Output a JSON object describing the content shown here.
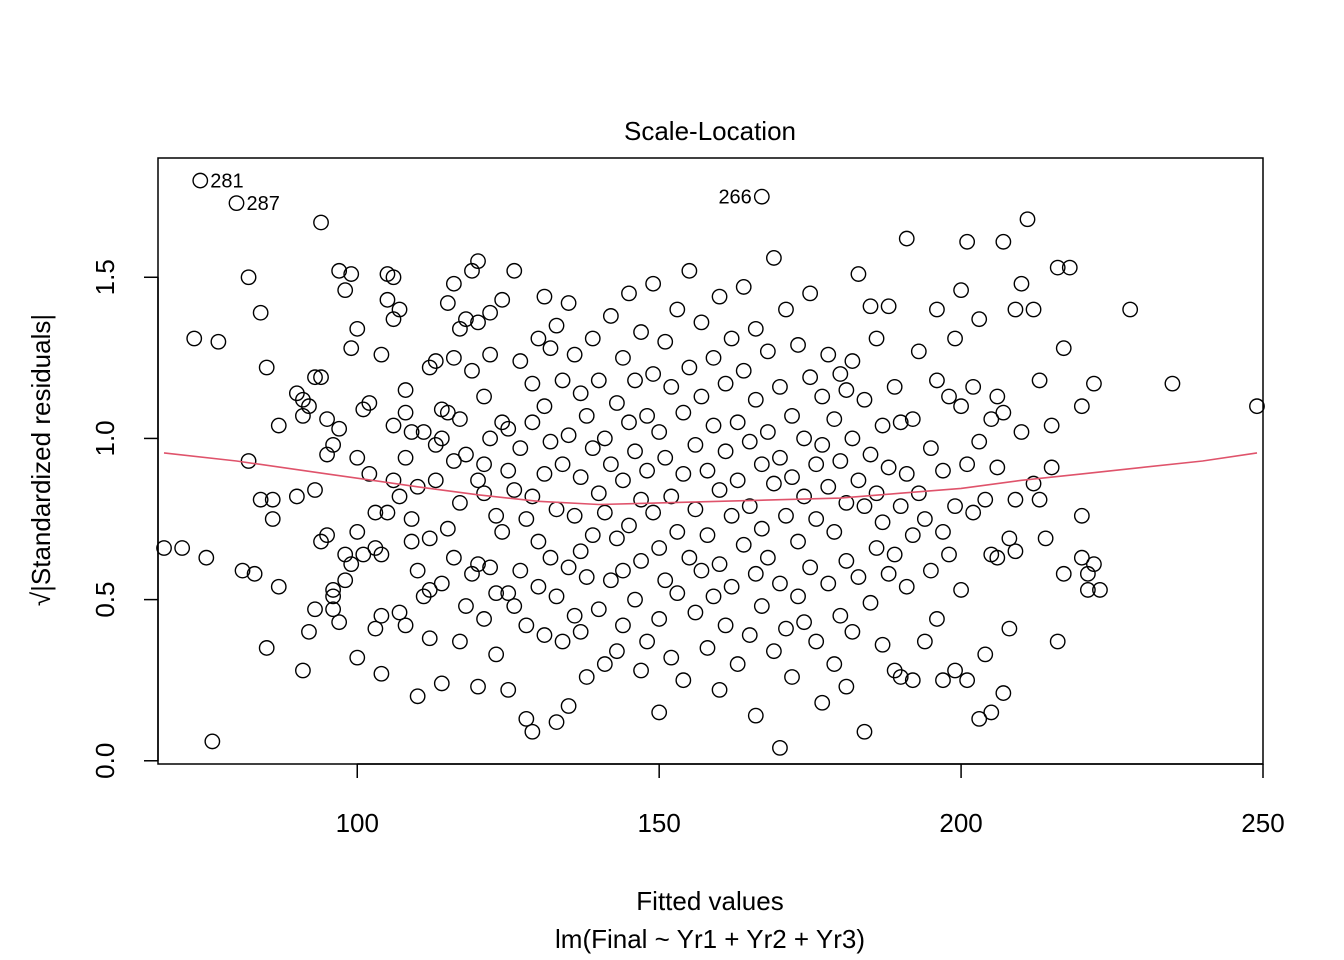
{
  "chart_data": {
    "type": "scatter",
    "title": "Scale-Location",
    "xlabel": "Fitted values",
    "subtitle": "lm(Final ~ Yr1 + Yr2 + Yr3)",
    "ylabel": "√|Standardized residuals|",
    "xlim": [
      67,
      250
    ],
    "ylim": [
      -0.01,
      1.87
    ],
    "xticks": [
      100,
      150,
      200,
      250
    ],
    "yticks": [
      0.0,
      0.5,
      1.0,
      1.5
    ],
    "xtick_labels": [
      "100",
      "150",
      "200",
      "250"
    ],
    "ytick_labels": [
      "0.0",
      "0.5",
      "1.0",
      "1.5"
    ],
    "grid": false,
    "smooth_color": "#DF536B",
    "point_color": "#000000",
    "smooth": [
      [
        68,
        0.955
      ],
      [
        80,
        0.93
      ],
      [
        95,
        0.89
      ],
      [
        110,
        0.85
      ],
      [
        120,
        0.825
      ],
      [
        130,
        0.805
      ],
      [
        140,
        0.795
      ],
      [
        150,
        0.8
      ],
      [
        160,
        0.805
      ],
      [
        170,
        0.81
      ],
      [
        180,
        0.815
      ],
      [
        190,
        0.83
      ],
      [
        200,
        0.845
      ],
      [
        210,
        0.87
      ],
      [
        220,
        0.89
      ],
      [
        230,
        0.91
      ],
      [
        240,
        0.93
      ],
      [
        249,
        0.955
      ]
    ],
    "labeled_points": [
      {
        "label": "281",
        "x": 74,
        "y": 1.8,
        "side": "right"
      },
      {
        "label": "287",
        "x": 80,
        "y": 1.73,
        "side": "right"
      },
      {
        "label": "266",
        "x": 167,
        "y": 1.75,
        "side": "left"
      }
    ],
    "points": [
      [
        68,
        0.66
      ],
      [
        71,
        0.66
      ],
      [
        73,
        1.31
      ],
      [
        75,
        0.63
      ],
      [
        76,
        0.06
      ],
      [
        77,
        1.3
      ],
      [
        81,
        0.59
      ],
      [
        82,
        1.5
      ],
      [
        82,
        0.93
      ],
      [
        83,
        0.58
      ],
      [
        84,
        1.39
      ],
      [
        84,
        0.81
      ],
      [
        85,
        0.35
      ],
      [
        85,
        1.22
      ],
      [
        86,
        0.75
      ],
      [
        86,
        0.81
      ],
      [
        87,
        1.04
      ],
      [
        87,
        0.54
      ],
      [
        90,
        1.14
      ],
      [
        90,
        0.82
      ],
      [
        91,
        1.12
      ],
      [
        91,
        0.28
      ],
      [
        91,
        1.07
      ],
      [
        92,
        1.1
      ],
      [
        92,
        0.4
      ],
      [
        93,
        1.19
      ],
      [
        93,
        0.47
      ],
      [
        93,
        0.84
      ],
      [
        94,
        1.67
      ],
      [
        94,
        1.19
      ],
      [
        94,
        0.68
      ],
      [
        95,
        0.95
      ],
      [
        95,
        0.7
      ],
      [
        95,
        1.06
      ],
      [
        96,
        0.47
      ],
      [
        96,
        0.53
      ],
      [
        96,
        0.51
      ],
      [
        96,
        0.98
      ],
      [
        97,
        1.52
      ],
      [
        97,
        1.03
      ],
      [
        97,
        0.43
      ],
      [
        98,
        0.64
      ],
      [
        98,
        1.46
      ],
      [
        98,
        0.56
      ],
      [
        99,
        1.28
      ],
      [
        99,
        1.51
      ],
      [
        99,
        0.61
      ],
      [
        100,
        0.94
      ],
      [
        100,
        0.32
      ],
      [
        100,
        1.34
      ],
      [
        100,
        0.71
      ],
      [
        101,
        1.09
      ],
      [
        101,
        0.64
      ],
      [
        102,
        0.89
      ],
      [
        102,
        1.11
      ],
      [
        103,
        0.41
      ],
      [
        103,
        0.66
      ],
      [
        103,
        0.77
      ],
      [
        104,
        1.26
      ],
      [
        104,
        0.64
      ],
      [
        104,
        0.45
      ],
      [
        104,
        0.27
      ],
      [
        105,
        1.51
      ],
      [
        105,
        1.43
      ],
      [
        105,
        0.77
      ],
      [
        106,
        1.37
      ],
      [
        106,
        1.04
      ],
      [
        106,
        0.87
      ],
      [
        106,
        1.5
      ],
      [
        107,
        1.4
      ],
      [
        107,
        0.82
      ],
      [
        107,
        0.46
      ],
      [
        108,
        1.08
      ],
      [
        108,
        1.15
      ],
      [
        108,
        0.94
      ],
      [
        108,
        0.42
      ],
      [
        109,
        1.02
      ],
      [
        109,
        0.75
      ],
      [
        109,
        0.68
      ],
      [
        110,
        0.59
      ],
      [
        110,
        0.85
      ],
      [
        110,
        0.2
      ],
      [
        111,
        1.02
      ],
      [
        111,
        0.51
      ],
      [
        112,
        1.22
      ],
      [
        112,
        0.69
      ],
      [
        112,
        0.38
      ],
      [
        112,
        0.53
      ],
      [
        113,
        1.24
      ],
      [
        113,
        0.98
      ],
      [
        113,
        0.87
      ],
      [
        114,
        1.09
      ],
      [
        114,
        0.55
      ],
      [
        114,
        0.24
      ],
      [
        114,
        1.0
      ],
      [
        115,
        1.42
      ],
      [
        115,
        1.08
      ],
      [
        115,
        0.72
      ],
      [
        116,
        1.25
      ],
      [
        116,
        1.48
      ],
      [
        116,
        0.93
      ],
      [
        116,
        0.63
      ],
      [
        117,
        1.34
      ],
      [
        117,
        1.06
      ],
      [
        117,
        0.8
      ],
      [
        117,
        0.37
      ],
      [
        118,
        1.37
      ],
      [
        118,
        0.95
      ],
      [
        118,
        0.48
      ],
      [
        119,
        1.21
      ],
      [
        119,
        1.52
      ],
      [
        119,
        0.58
      ],
      [
        120,
        1.55
      ],
      [
        120,
        1.36
      ],
      [
        120,
        0.87
      ],
      [
        120,
        0.61
      ],
      [
        120,
        0.23
      ],
      [
        121,
        1.13
      ],
      [
        121,
        0.92
      ],
      [
        121,
        0.83
      ],
      [
        121,
        0.44
      ],
      [
        122,
        1.39
      ],
      [
        122,
        1.26
      ],
      [
        122,
        1.0
      ],
      [
        122,
        0.6
      ],
      [
        123,
        0.52
      ],
      [
        123,
        0.76
      ],
      [
        123,
        0.33
      ],
      [
        124,
        1.43
      ],
      [
        124,
        1.05
      ],
      [
        124,
        0.71
      ],
      [
        125,
        1.03
      ],
      [
        125,
        0.9
      ],
      [
        125,
        0.52
      ],
      [
        125,
        0.22
      ],
      [
        126,
        1.52
      ],
      [
        126,
        0.84
      ],
      [
        126,
        0.48
      ],
      [
        127,
        1.24
      ],
      [
        127,
        0.97
      ],
      [
        127,
        0.59
      ],
      [
        128,
        0.75
      ],
      [
        128,
        0.42
      ],
      [
        128,
        0.13
      ],
      [
        129,
        1.17
      ],
      [
        129,
        1.05
      ],
      [
        129,
        0.82
      ],
      [
        129,
        0.09
      ],
      [
        130,
        1.31
      ],
      [
        130,
        0.68
      ],
      [
        130,
        0.54
      ],
      [
        131,
        1.44
      ],
      [
        131,
        1.1
      ],
      [
        131,
        0.89
      ],
      [
        131,
        0.39
      ],
      [
        132,
        1.28
      ],
      [
        132,
        0.99
      ],
      [
        132,
        0.63
      ],
      [
        133,
        1.35
      ],
      [
        133,
        0.78
      ],
      [
        133,
        0.51
      ],
      [
        133,
        0.12
      ],
      [
        134,
        1.18
      ],
      [
        134,
        0.92
      ],
      [
        134,
        0.37
      ],
      [
        135,
        1.42
      ],
      [
        135,
        1.01
      ],
      [
        135,
        0.6
      ],
      [
        135,
        0.17
      ],
      [
        136,
        1.26
      ],
      [
        136,
        0.76
      ],
      [
        136,
        0.45
      ],
      [
        137,
        1.14
      ],
      [
        137,
        0.88
      ],
      [
        137,
        0.65
      ],
      [
        137,
        0.4
      ],
      [
        138,
        1.07
      ],
      [
        138,
        0.57
      ],
      [
        138,
        0.26
      ],
      [
        139,
        1.31
      ],
      [
        139,
        0.97
      ],
      [
        139,
        0.7
      ],
      [
        140,
        1.18
      ],
      [
        140,
        0.83
      ],
      [
        140,
        0.47
      ],
      [
        141,
        1.0
      ],
      [
        141,
        0.77
      ],
      [
        141,
        0.3
      ],
      [
        142,
        1.38
      ],
      [
        142,
        0.92
      ],
      [
        142,
        0.56
      ],
      [
        143,
        1.11
      ],
      [
        143,
        0.69
      ],
      [
        143,
        0.34
      ],
      [
        144,
        1.25
      ],
      [
        144,
        0.87
      ],
      [
        144,
        0.59
      ],
      [
        144,
        0.42
      ],
      [
        145,
        1.45
      ],
      [
        145,
        1.05
      ],
      [
        145,
        0.73
      ],
      [
        146,
        1.18
      ],
      [
        146,
        0.96
      ],
      [
        146,
        0.5
      ],
      [
        147,
        1.33
      ],
      [
        147,
        0.81
      ],
      [
        147,
        0.62
      ],
      [
        147,
        0.28
      ],
      [
        148,
        1.07
      ],
      [
        148,
        0.9
      ],
      [
        148,
        0.37
      ],
      [
        149,
        1.48
      ],
      [
        149,
        1.2
      ],
      [
        149,
        0.77
      ],
      [
        150,
        1.02
      ],
      [
        150,
        0.66
      ],
      [
        150,
        0.44
      ],
      [
        150,
        0.15
      ],
      [
        151,
        1.3
      ],
      [
        151,
        0.94
      ],
      [
        151,
        0.56
      ],
      [
        152,
        1.16
      ],
      [
        152,
        0.82
      ],
      [
        152,
        0.32
      ],
      [
        153,
        1.4
      ],
      [
        153,
        0.71
      ],
      [
        153,
        0.52
      ],
      [
        154,
        1.08
      ],
      [
        154,
        0.89
      ],
      [
        154,
        0.25
      ],
      [
        155,
        1.52
      ],
      [
        155,
        1.22
      ],
      [
        155,
        0.63
      ],
      [
        156,
        0.98
      ],
      [
        156,
        0.78
      ],
      [
        156,
        0.46
      ],
      [
        157,
        1.36
      ],
      [
        157,
        1.13
      ],
      [
        157,
        0.59
      ],
      [
        158,
        0.9
      ],
      [
        158,
        0.7
      ],
      [
        158,
        0.35
      ],
      [
        159,
        1.25
      ],
      [
        159,
        1.04
      ],
      [
        159,
        0.51
      ],
      [
        160,
        1.44
      ],
      [
        160,
        0.84
      ],
      [
        160,
        0.61
      ],
      [
        160,
        0.22
      ],
      [
        161,
        1.17
      ],
      [
        161,
        0.96
      ],
      [
        161,
        0.42
      ],
      [
        162,
        1.31
      ],
      [
        162,
        0.76
      ],
      [
        162,
        0.54
      ],
      [
        163,
        1.05
      ],
      [
        163,
        0.87
      ],
      [
        163,
        0.3
      ],
      [
        164,
        1.47
      ],
      [
        164,
        1.21
      ],
      [
        164,
        0.67
      ],
      [
        165,
        0.99
      ],
      [
        165,
        0.79
      ],
      [
        165,
        0.39
      ],
      [
        166,
        1.34
      ],
      [
        166,
        1.12
      ],
      [
        166,
        0.58
      ],
      [
        166,
        0.14
      ],
      [
        167,
        0.92
      ],
      [
        167,
        0.72
      ],
      [
        167,
        0.48
      ],
      [
        168,
        1.27
      ],
      [
        168,
        1.02
      ],
      [
        168,
        0.63
      ],
      [
        169,
        1.56
      ],
      [
        169,
        0.86
      ],
      [
        169,
        0.34
      ],
      [
        170,
        1.16
      ],
      [
        170,
        0.94
      ],
      [
        170,
        0.55
      ],
      [
        170,
        0.04
      ],
      [
        171,
        1.4
      ],
      [
        171,
        0.76
      ],
      [
        171,
        0.41
      ],
      [
        172,
        1.07
      ],
      [
        172,
        0.88
      ],
      [
        172,
        0.26
      ],
      [
        173,
        1.29
      ],
      [
        173,
        0.68
      ],
      [
        173,
        0.51
      ],
      [
        174,
        1.0
      ],
      [
        174,
        0.82
      ],
      [
        174,
        0.43
      ],
      [
        175,
        1.45
      ],
      [
        175,
        1.19
      ],
      [
        175,
        0.6
      ],
      [
        176,
        0.92
      ],
      [
        176,
        0.75
      ],
      [
        176,
        0.37
      ],
      [
        177,
        1.13
      ],
      [
        177,
        0.98
      ],
      [
        177,
        0.18
      ],
      [
        178,
        1.26
      ],
      [
        178,
        0.85
      ],
      [
        178,
        0.55
      ],
      [
        179,
        1.06
      ],
      [
        179,
        0.71
      ],
      [
        179,
        0.3
      ],
      [
        180,
        1.2
      ],
      [
        180,
        0.93
      ],
      [
        180,
        0.45
      ],
      [
        181,
        1.15
      ],
      [
        181,
        0.8
      ],
      [
        181,
        0.62
      ],
      [
        181,
        0.23
      ],
      [
        182,
        1.24
      ],
      [
        182,
        1.0
      ],
      [
        182,
        0.4
      ],
      [
        183,
        1.51
      ],
      [
        183,
        0.87
      ],
      [
        183,
        0.57
      ],
      [
        184,
        1.12
      ],
      [
        184,
        0.79
      ],
      [
        184,
        0.09
      ],
      [
        185,
        1.41
      ],
      [
        185,
        0.95
      ],
      [
        185,
        0.49
      ],
      [
        186,
        1.31
      ],
      [
        186,
        0.83
      ],
      [
        186,
        0.66
      ],
      [
        187,
        1.04
      ],
      [
        187,
        0.74
      ],
      [
        187,
        0.36
      ],
      [
        188,
        1.41
      ],
      [
        188,
        0.91
      ],
      [
        188,
        0.58
      ],
      [
        189,
        1.16
      ],
      [
        189,
        0.28
      ],
      [
        189,
        0.64
      ],
      [
        190,
        1.05
      ],
      [
        190,
        0.79
      ],
      [
        190,
        0.26
      ],
      [
        191,
        1.62
      ],
      [
        191,
        0.89
      ],
      [
        191,
        0.54
      ],
      [
        192,
        1.06
      ],
      [
        192,
        0.7
      ],
      [
        192,
        0.25
      ],
      [
        193,
        1.27
      ],
      [
        193,
        0.83
      ],
      [
        194,
        0.75
      ],
      [
        194,
        0.37
      ],
      [
        195,
        0.97
      ],
      [
        195,
        0.59
      ],
      [
        196,
        1.4
      ],
      [
        196,
        1.18
      ],
      [
        196,
        0.44
      ],
      [
        197,
        0.9
      ],
      [
        197,
        0.71
      ],
      [
        197,
        0.25
      ],
      [
        198,
        1.13
      ],
      [
        198,
        0.64
      ],
      [
        199,
        1.31
      ],
      [
        199,
        0.79
      ],
      [
        199,
        0.28
      ],
      [
        200,
        1.46
      ],
      [
        200,
        1.1
      ],
      [
        200,
        0.53
      ],
      [
        201,
        1.61
      ],
      [
        201,
        0.92
      ],
      [
        201,
        0.25
      ],
      [
        202,
        1.16
      ],
      [
        202,
        0.77
      ],
      [
        203,
        1.37
      ],
      [
        203,
        0.99
      ],
      [
        203,
        0.13
      ],
      [
        204,
        0.81
      ],
      [
        204,
        0.33
      ],
      [
        205,
        1.06
      ],
      [
        205,
        0.64
      ],
      [
        205,
        0.15
      ],
      [
        206,
        1.13
      ],
      [
        206,
        0.91
      ],
      [
        206,
        0.63
      ],
      [
        207,
        1.61
      ],
      [
        207,
        1.08
      ],
      [
        207,
        0.21
      ],
      [
        208,
        0.69
      ],
      [
        208,
        0.41
      ],
      [
        209,
        1.4
      ],
      [
        209,
        0.81
      ],
      [
        209,
        0.65
      ],
      [
        210,
        1.48
      ],
      [
        210,
        1.02
      ],
      [
        211,
        1.68
      ],
      [
        212,
        1.4
      ],
      [
        212,
        0.86
      ],
      [
        213,
        0.81
      ],
      [
        213,
        1.18
      ],
      [
        214,
        0.69
      ],
      [
        215,
        1.04
      ],
      [
        215,
        0.91
      ],
      [
        216,
        1.53
      ],
      [
        216,
        0.37
      ],
      [
        217,
        1.28
      ],
      [
        217,
        0.58
      ],
      [
        218,
        1.53
      ],
      [
        220,
        1.1
      ],
      [
        220,
        0.76
      ],
      [
        220,
        0.63
      ],
      [
        221,
        0.53
      ],
      [
        221,
        0.58
      ],
      [
        222,
        1.17
      ],
      [
        222,
        0.61
      ],
      [
        223,
        0.53
      ],
      [
        228,
        1.4
      ],
      [
        235,
        1.17
      ],
      [
        249,
        1.1
      ]
    ]
  }
}
